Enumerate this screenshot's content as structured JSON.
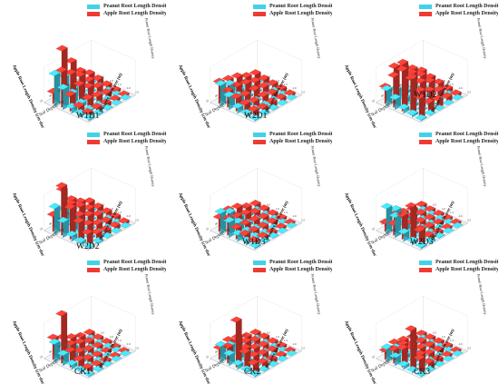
{
  "legend": {
    "peanut_label": "Peanut Root Length Density",
    "apple_label": "Apple Root Length Density",
    "peanut_color": "#3fd3ea",
    "apple_color": "#ee3b32"
  },
  "axis_titles": {
    "y_left": "Apple Root Length Density (cm·dm⁻³)",
    "x_depth": "Soil Depth(cm)",
    "x_distance": "Distance from tree (m)",
    "z_right": "Peanut Root Length Density"
  },
  "chart_data": [
    {
      "type": "bar3d",
      "panel": "W1D1",
      "depth_categories": [
        "20",
        "40",
        "60",
        "80",
        "100"
      ],
      "distance_categories": [
        "0.5",
        "1.0",
        "1.5",
        "2.0",
        "2.5"
      ],
      "series": [
        {
          "name": "Peanut Root Length Density",
          "values": [
            [
              60,
              40,
              10,
              5,
              3
            ],
            [
              45,
              20,
              8,
              3,
              2
            ],
            [
              10,
              5,
              2,
              1,
              1
            ],
            [
              4,
              2,
              1,
              1,
              0
            ],
            [
              2,
              1,
              0,
              0,
              0
            ]
          ]
        },
        {
          "name": "Apple Root Length Density",
          "values": [
            [
              20,
              70,
              30,
              15,
              10
            ],
            [
              95,
              55,
              40,
              20,
              10
            ],
            [
              60,
              40,
              25,
              15,
              8
            ],
            [
              30,
              20,
              15,
              10,
              5
            ],
            [
              15,
              12,
              8,
              5,
              3
            ]
          ]
        }
      ]
    },
    {
      "type": "bar3d",
      "panel": "W2D1",
      "depth_categories": [
        "20",
        "40",
        "60",
        "80",
        "100"
      ],
      "distance_categories": [
        "0.5",
        "1.0",
        "1.5",
        "2.0",
        "2.5"
      ],
      "series": [
        {
          "name": "Peanut Root Length Density",
          "values": [
            [
              40,
              25,
              10,
              5,
              2
            ],
            [
              30,
              15,
              6,
              3,
              2
            ],
            [
              8,
              4,
              2,
              1,
              1
            ],
            [
              3,
              2,
              1,
              0,
              0
            ],
            [
              2,
              1,
              0,
              0,
              0
            ]
          ]
        },
        {
          "name": "Apple Root Length Density",
          "values": [
            [
              40,
              30,
              25,
              20,
              15
            ],
            [
              35,
              30,
              20,
              15,
              10
            ],
            [
              30,
              25,
              20,
              15,
              10
            ],
            [
              20,
              18,
              15,
              10,
              8
            ],
            [
              15,
              12,
              10,
              8,
              5
            ]
          ]
        }
      ]
    },
    {
      "type": "bar3d",
      "panel": "W1D2",
      "depth_categories": [
        "20",
        "40",
        "60",
        "80",
        "100"
      ],
      "distance_categories": [
        "0.5",
        "1.0",
        "1.5",
        "2.0",
        "2.5"
      ],
      "series": [
        {
          "name": "Peanut Root Length Density",
          "values": [
            [
              30,
              20,
              8,
              4,
              2
            ],
            [
              20,
              10,
              5,
              2,
              1
            ],
            [
              6,
              3,
              2,
              1,
              0
            ],
            [
              2,
              1,
              0,
              0,
              0
            ],
            [
              1,
              0,
              0,
              0,
              0
            ]
          ]
        },
        {
          "name": "Apple Root Length Density",
          "values": [
            [
              30,
              60,
              80,
              70,
              40
            ],
            [
              60,
              75,
              55,
              35,
              20
            ],
            [
              50,
              45,
              35,
              25,
              15
            ],
            [
              35,
              30,
              25,
              15,
              10
            ],
            [
              20,
              15,
              12,
              8,
              5
            ]
          ]
        }
      ]
    },
    {
      "type": "bar3d",
      "panel": "W2D2",
      "depth_categories": [
        "20",
        "40",
        "60",
        "80",
        "100"
      ],
      "distance_categories": [
        "0.5",
        "1.0",
        "1.5",
        "2.0",
        "2.5"
      ],
      "series": [
        {
          "name": "Peanut Root Length Density",
          "values": [
            [
              50,
              30,
              10,
              5,
              2
            ],
            [
              35,
              15,
              6,
              3,
              2
            ],
            [
              10,
              5,
              2,
              1,
              1
            ],
            [
              3,
              2,
              1,
              0,
              0
            ],
            [
              2,
              1,
              0,
              0,
              0
            ]
          ]
        },
        {
          "name": "Apple Root Length Density",
          "values": [
            [
              30,
              95,
              60,
              40,
              25
            ],
            [
              70,
              50,
              35,
              25,
              15
            ],
            [
              40,
              35,
              25,
              15,
              10
            ],
            [
              25,
              20,
              15,
              10,
              8
            ],
            [
              15,
              12,
              10,
              8,
              5
            ]
          ]
        }
      ]
    },
    {
      "type": "bar3d",
      "panel": "W1D3",
      "depth_categories": [
        "20",
        "40",
        "60",
        "80",
        "100"
      ],
      "distance_categories": [
        "0.5",
        "1.0",
        "1.5",
        "2.0",
        "2.5"
      ],
      "series": [
        {
          "name": "Peanut Root Length Density",
          "values": [
            [
              40,
              30,
              12,
              6,
              3
            ],
            [
              30,
              18,
              8,
              4,
              2
            ],
            [
              10,
              5,
              3,
              1,
              1
            ],
            [
              4,
              2,
              1,
              0,
              0
            ],
            [
              2,
              1,
              0,
              0,
              0
            ]
          ]
        },
        {
          "name": "Apple Root Length Density",
          "values": [
            [
              25,
              30,
              20,
              15,
              10
            ],
            [
              30,
              25,
              18,
              12,
              8
            ],
            [
              25,
              20,
              15,
              10,
              6
            ],
            [
              15,
              12,
              10,
              8,
              5
            ],
            [
              10,
              8,
              6,
              5,
              3
            ]
          ]
        }
      ]
    },
    {
      "type": "bar3d",
      "panel": "W2D3",
      "depth_categories": [
        "20",
        "40",
        "60",
        "80",
        "100"
      ],
      "distance_categories": [
        "0.5",
        "1.0",
        "1.5",
        "2.0",
        "2.5"
      ],
      "series": [
        {
          "name": "Peanut Root Length Density",
          "values": [
            [
              50,
              40,
              15,
              6,
              3
            ],
            [
              35,
              20,
              8,
              4,
              2
            ],
            [
              12,
              6,
              3,
              1,
              1
            ],
            [
              4,
              2,
              1,
              0,
              0
            ],
            [
              2,
              1,
              0,
              0,
              0
            ]
          ]
        },
        {
          "name": "Apple Root Length Density",
          "values": [
            [
              15,
              20,
              45,
              70,
              30
            ],
            [
              20,
              25,
              20,
              15,
              10
            ],
            [
              15,
              15,
              12,
              10,
              6
            ],
            [
              10,
              10,
              8,
              6,
              4
            ],
            [
              8,
              6,
              5,
              4,
              3
            ]
          ]
        }
      ]
    },
    {
      "type": "bar3d",
      "panel": "CK1",
      "depth_categories": [
        "20",
        "40",
        "60",
        "80",
        "100"
      ],
      "distance_categories": [
        "0.5",
        "1.0",
        "1.5",
        "2.0",
        "2.5"
      ],
      "series": [
        {
          "name": "Peanut Root Length Density",
          "values": [
            [
              35,
              20,
              8,
              4,
              2
            ],
            [
              20,
              10,
              5,
              2,
              1
            ],
            [
              6,
              3,
              2,
              1,
              0
            ],
            [
              2,
              1,
              0,
              0,
              0
            ],
            [
              1,
              0,
              0,
              0,
              0
            ]
          ]
        },
        {
          "name": "Apple Root Length Density",
          "values": [
            [
              40,
              95,
              30,
              20,
              12
            ],
            [
              30,
              25,
              18,
              12,
              8
            ],
            [
              20,
              18,
              12,
              8,
              5
            ],
            [
              12,
              10,
              8,
              5,
              3
            ],
            [
              8,
              6,
              5,
              3,
              2
            ]
          ]
        }
      ]
    },
    {
      "type": "bar3d",
      "panel": "CK2",
      "depth_categories": [
        "20",
        "40",
        "60",
        "80",
        "100"
      ],
      "distance_categories": [
        "0.5",
        "1.0",
        "1.5",
        "2.0",
        "2.5"
      ],
      "series": [
        {
          "name": "Peanut Root Length Density",
          "values": [
            [
              30,
              20,
              8,
              4,
              2
            ],
            [
              20,
              10,
              5,
              2,
              1
            ],
            [
              6,
              3,
              2,
              1,
              0
            ],
            [
              2,
              1,
              0,
              0,
              0
            ],
            [
              1,
              0,
              0,
              0,
              0
            ]
          ]
        },
        {
          "name": "Apple Root Length Density",
          "values": [
            [
              20,
              30,
              90,
              35,
              20
            ],
            [
              25,
              30,
              25,
              18,
              12
            ],
            [
              20,
              20,
              15,
              12,
              8
            ],
            [
              12,
              12,
              10,
              8,
              5
            ],
            [
              8,
              8,
              6,
              5,
              3
            ]
          ]
        }
      ]
    },
    {
      "type": "bar3d",
      "panel": "CK3",
      "depth_categories": [
        "20",
        "40",
        "60",
        "80",
        "100"
      ],
      "distance_categories": [
        "0.5",
        "1.0",
        "1.5",
        "2.0",
        "2.5"
      ],
      "series": [
        {
          "name": "Peanut Root Length Density",
          "values": [
            [
              25,
              15,
              6,
              3,
              2
            ],
            [
              15,
              8,
              4,
              2,
              1
            ],
            [
              5,
              3,
              2,
              1,
              0
            ],
            [
              2,
              1,
              0,
              0,
              0
            ],
            [
              1,
              0,
              0,
              0,
              0
            ]
          ]
        },
        {
          "name": "Apple Root Length Density",
          "values": [
            [
              15,
              25,
              35,
              80,
              30
            ],
            [
              20,
              25,
              25,
              20,
              12
            ],
            [
              15,
              15,
              15,
              12,
              8
            ],
            [
              10,
              10,
              10,
              8,
              5
            ],
            [
              6,
              6,
              6,
              5,
              3
            ]
          ]
        }
      ]
    }
  ]
}
